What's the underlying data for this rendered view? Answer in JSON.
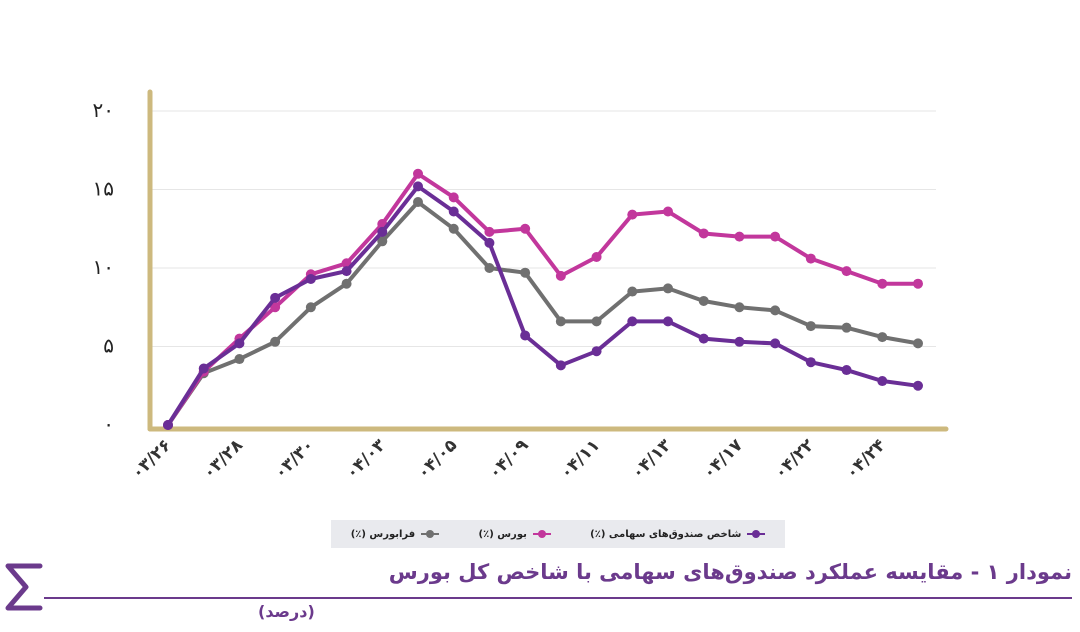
{
  "chart_data": {
    "type": "line",
    "x_ticks": [
      "۰۳/۲۶",
      "۰۳/۲۸",
      "۰۳/۳۰",
      "۰۴/۰۳",
      "۰۴/۰۵",
      "۰۴/۰۹",
      "۰۴/۱۱",
      "۰۴/۱۳",
      "۰۴/۱۷",
      "۰۴/۲۲",
      "۰۴/۲۴"
    ],
    "y_ticks": [
      "۰",
      "۵",
      "۱۰",
      "۱۵",
      "۲۰"
    ],
    "ylim": [
      0,
      20
    ],
    "grid": true,
    "series": [
      {
        "name": "شاخص صندوق‌های سهامی (٪)",
        "color": "#6a2e96",
        "values": [
          0,
          3.6,
          5.2,
          8.1,
          9.3,
          9.8,
          12.3,
          15.2,
          13.6,
          11.6,
          5.7,
          3.8,
          4.7,
          6.6,
          6.6,
          5.5,
          5.3,
          5.2,
          4.0,
          3.5,
          2.8,
          2.5
        ]
      },
      {
        "name": "بورس (٪)",
        "color": "#c2379c",
        "values": [
          0,
          3.4,
          5.5,
          7.5,
          9.6,
          10.3,
          12.8,
          16.0,
          14.5,
          12.3,
          12.5,
          9.5,
          10.7,
          13.4,
          13.6,
          12.2,
          12.0,
          12.0,
          10.6,
          9.8,
          9.0,
          9.0
        ]
      },
      {
        "name": "فرابورس (٪)",
        "color": "#707070",
        "values": [
          0,
          3.3,
          4.2,
          5.3,
          7.5,
          9.0,
          11.7,
          14.2,
          12.5,
          10.0,
          9.7,
          6.6,
          6.6,
          8.5,
          8.7,
          7.9,
          7.5,
          7.3,
          6.3,
          6.2,
          5.6,
          5.2
        ]
      }
    ]
  },
  "legend": {
    "items": [
      "شاخص صندوق‌های سهامی (٪)",
      "بورس (٪)",
      "فرابورس (٪)"
    ]
  },
  "footer": {
    "title": "نمودار ۱ - مقایسه عملکرد صندوق‌های سهامی با شاخص کل بورس",
    "subtitle": "(درصد)"
  },
  "colors": {
    "axis": "#cdb97e",
    "accent": "#6b3a8c"
  }
}
